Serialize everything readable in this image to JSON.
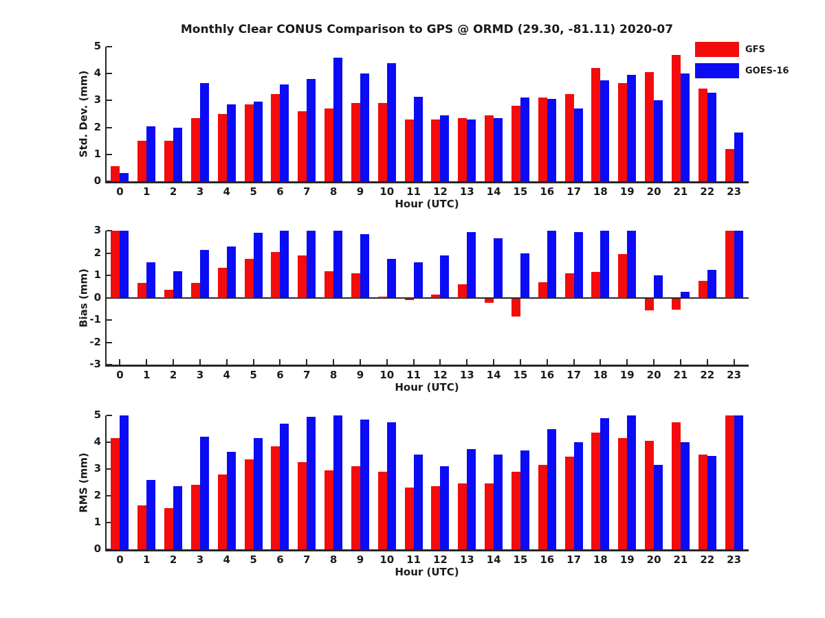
{
  "title": "Monthly Clear CONUS Comparison to GPS @ ORMD (29.30, -81.11) 2020-07",
  "legend": {
    "position": "top-right",
    "items": [
      {
        "label": "GFS",
        "color": "#f40b0b"
      },
      {
        "label": "GOES-16",
        "color": "#0b0bf4"
      }
    ]
  },
  "chart_data": [
    {
      "type": "bar",
      "title": "",
      "ylabel": "Std. Dev. (mm)",
      "xlabel": "Hour (UTC)",
      "ylim": [
        0,
        5
      ],
      "yticks": [
        "0",
        "1",
        "2",
        "3",
        "4",
        "5"
      ],
      "grid": false,
      "categories": [
        "0",
        "1",
        "2",
        "3",
        "4",
        "5",
        "6",
        "7",
        "8",
        "9",
        "10",
        "11",
        "12",
        "13",
        "14",
        "15",
        "16",
        "17",
        "18",
        "19",
        "20",
        "21",
        "22",
        "23"
      ],
      "series": [
        {
          "name": "GFS",
          "color": "#f40b0b",
          "values": [
            0.55,
            1.5,
            1.5,
            2.35,
            2.5,
            2.85,
            3.25,
            2.6,
            2.7,
            2.9,
            2.9,
            2.3,
            2.3,
            2.35,
            2.45,
            2.8,
            3.1,
            3.25,
            4.2,
            3.65,
            4.05,
            4.7,
            3.45,
            1.2
          ]
        },
        {
          "name": "GOES-16",
          "color": "#0b0bf4",
          "values": [
            0.3,
            2.05,
            2.0,
            3.65,
            2.85,
            2.95,
            3.6,
            3.8,
            4.6,
            4.0,
            4.4,
            3.15,
            2.45,
            2.3,
            2.35,
            3.1,
            3.05,
            2.7,
            3.75,
            3.95,
            3.0,
            4.0,
            3.3,
            1.8
          ]
        }
      ]
    },
    {
      "type": "bar",
      "title": "",
      "ylabel": "Bias (mm)",
      "xlabel": "Hour (UTC)",
      "ylim": [
        -3,
        3
      ],
      "yticks": [
        "-3",
        "-2",
        "-1",
        "0",
        "1",
        "2",
        "3"
      ],
      "grid": false,
      "categories": [
        "0",
        "1",
        "2",
        "3",
        "4",
        "5",
        "6",
        "7",
        "8",
        "9",
        "10",
        "11",
        "12",
        "13",
        "14",
        "15",
        "16",
        "17",
        "18",
        "19",
        "20",
        "21",
        "22",
        "23"
      ],
      "series": [
        {
          "name": "GFS",
          "color": "#f40b0b",
          "values": [
            3.0,
            0.65,
            0.35,
            0.65,
            1.35,
            1.75,
            2.05,
            1.9,
            1.2,
            1.1,
            0.05,
            -0.07,
            0.15,
            0.6,
            -0.2,
            -0.8,
            0.7,
            1.1,
            1.15,
            1.95,
            -0.55,
            -0.5,
            0.75,
            3.0
          ]
        },
        {
          "name": "GOES-16",
          "color": "#0b0bf4",
          "values": [
            3.0,
            1.6,
            1.2,
            2.15,
            2.3,
            2.9,
            3.0,
            3.0,
            3.0,
            2.85,
            1.75,
            1.6,
            1.9,
            2.95,
            2.65,
            2.0,
            3.0,
            2.95,
            3.0,
            3.0,
            1.0,
            0.25,
            1.25,
            3.0
          ]
        }
      ]
    },
    {
      "type": "bar",
      "title": "",
      "ylabel": "RMS (mm)",
      "xlabel": "Hour (UTC)",
      "ylim": [
        0,
        5
      ],
      "yticks": [
        "0",
        "1",
        "2",
        "3",
        "4",
        "5"
      ],
      "grid": false,
      "categories": [
        "0",
        "1",
        "2",
        "3",
        "4",
        "5",
        "6",
        "7",
        "8",
        "9",
        "10",
        "11",
        "12",
        "13",
        "14",
        "15",
        "16",
        "17",
        "18",
        "19",
        "20",
        "21",
        "22",
        "23"
      ],
      "series": [
        {
          "name": "GFS",
          "color": "#f40b0b",
          "values": [
            4.15,
            1.65,
            1.55,
            2.4,
            2.8,
            3.35,
            3.85,
            3.25,
            2.95,
            3.1,
            2.9,
            2.3,
            2.35,
            2.45,
            2.45,
            2.9,
            3.15,
            3.45,
            4.35,
            4.15,
            4.05,
            4.75,
            3.55,
            5.0
          ]
        },
        {
          "name": "GOES-16",
          "color": "#0b0bf4",
          "values": [
            5.0,
            2.6,
            2.35,
            4.2,
            3.65,
            4.15,
            4.7,
            4.95,
            5.0,
            4.85,
            4.75,
            3.55,
            3.1,
            3.75,
            3.55,
            3.7,
            4.5,
            4.0,
            4.9,
            5.0,
            3.15,
            4.0,
            3.5,
            5.0
          ]
        }
      ]
    }
  ]
}
